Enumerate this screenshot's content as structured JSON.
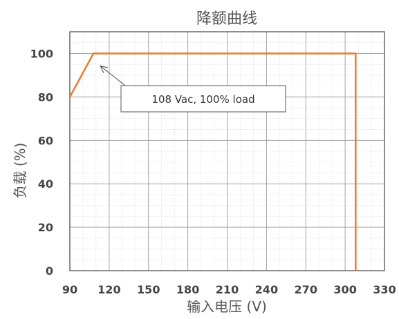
{
  "chart_data": {
    "type": "line",
    "title": "降额曲线",
    "xlabel": "输入电压 (V)",
    "ylabel": "负载 (%)",
    "xlim": [
      90,
      330
    ],
    "ylim": [
      0,
      110
    ],
    "x_ticks": [
      90,
      120,
      150,
      180,
      210,
      240,
      270,
      300,
      330
    ],
    "y_ticks": [
      0,
      20,
      40,
      60,
      80,
      100
    ],
    "grid": true,
    "series": [
      {
        "color": "#ED7D31",
        "x": [
          90,
          108,
          308,
          308
        ],
        "y": [
          80,
          100,
          100,
          0
        ]
      }
    ],
    "annotations": [
      {
        "text": "108 Vac, 100% load",
        "x": 108,
        "y": 100
      }
    ]
  }
}
